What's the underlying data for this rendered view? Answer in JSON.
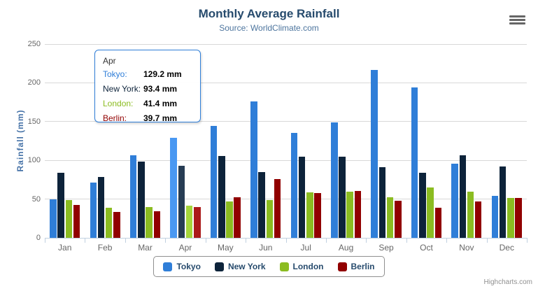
{
  "header": {
    "title": "Monthly Average Rainfall",
    "subtitle": "Source: WorldClimate.com",
    "export_menu_icon": "hamburger-icon"
  },
  "chart_data": {
    "type": "bar",
    "title": "Monthly Average Rainfall",
    "subtitle": "Source: WorldClimate.com",
    "xlabel": "",
    "ylabel": "Rainfall (mm)",
    "ylim": [
      0,
      250
    ],
    "yticks": [
      0,
      50,
      100,
      150,
      200,
      250
    ],
    "grid": true,
    "legend_position": "bottom",
    "categories": [
      "Jan",
      "Feb",
      "Mar",
      "Apr",
      "May",
      "Jun",
      "Jul",
      "Aug",
      "Sep",
      "Oct",
      "Nov",
      "Dec"
    ],
    "series": [
      {
        "name": "Tokyo",
        "color": "#2f7ed8",
        "hover_color": "#4998f2",
        "values": [
          49.9,
          71.5,
          106.4,
          129.2,
          144.0,
          176.0,
          135.6,
          148.5,
          216.4,
          194.1,
          95.6,
          54.4
        ]
      },
      {
        "name": "New York",
        "color": "#0d233a",
        "hover_color": "#273d54",
        "values": [
          83.6,
          78.8,
          98.5,
          93.4,
          106.0,
          84.5,
          105.0,
          104.3,
          91.2,
          83.5,
          106.6,
          92.3
        ]
      },
      {
        "name": "London",
        "color": "#8bbc21",
        "hover_color": "#a5d63b",
        "values": [
          48.9,
          38.8,
          39.3,
          41.4,
          47.0,
          48.3,
          59.0,
          59.6,
          52.4,
          65.2,
          59.3,
          51.2
        ]
      },
      {
        "name": "Berlin",
        "color": "#910000",
        "hover_color": "#ab1a1a",
        "values": [
          42.4,
          33.2,
          34.5,
          39.7,
          52.6,
          75.5,
          57.4,
          60.4,
          47.6,
          39.1,
          46.8,
          51.1
        ]
      }
    ],
    "hovered_category": "Apr"
  },
  "tooltip": {
    "header": "Apr",
    "border_color": "#2f7ed8",
    "rows": [
      {
        "label": "Tokyo:",
        "value": "129.2 mm",
        "color": "#2f7ed8"
      },
      {
        "label": "New York:",
        "value": "93.4 mm",
        "color": "#0d233a"
      },
      {
        "label": "London:",
        "value": "41.4 mm",
        "color": "#8bbc21"
      },
      {
        "label": "Berlin:",
        "value": "39.7 mm",
        "color": "#910000"
      }
    ]
  },
  "legend": {
    "items": [
      {
        "label": "Tokyo",
        "color": "#2f7ed8"
      },
      {
        "label": "New York",
        "color": "#0d233a"
      },
      {
        "label": "London",
        "color": "#8bbc21"
      },
      {
        "label": "Berlin",
        "color": "#910000"
      }
    ]
  },
  "credits": {
    "label": "Highcharts.com"
  },
  "colors": {
    "title": "#274b6d",
    "subtitle": "#4d759e",
    "axis_label": "#666666",
    "y_axis_title": "#4572a7",
    "grid_line": "#d8d8d8",
    "axis_line": "#c0d0e0",
    "legend_border": "#909090",
    "legend_text": "#274b6d",
    "credits_text": "#909090"
  }
}
